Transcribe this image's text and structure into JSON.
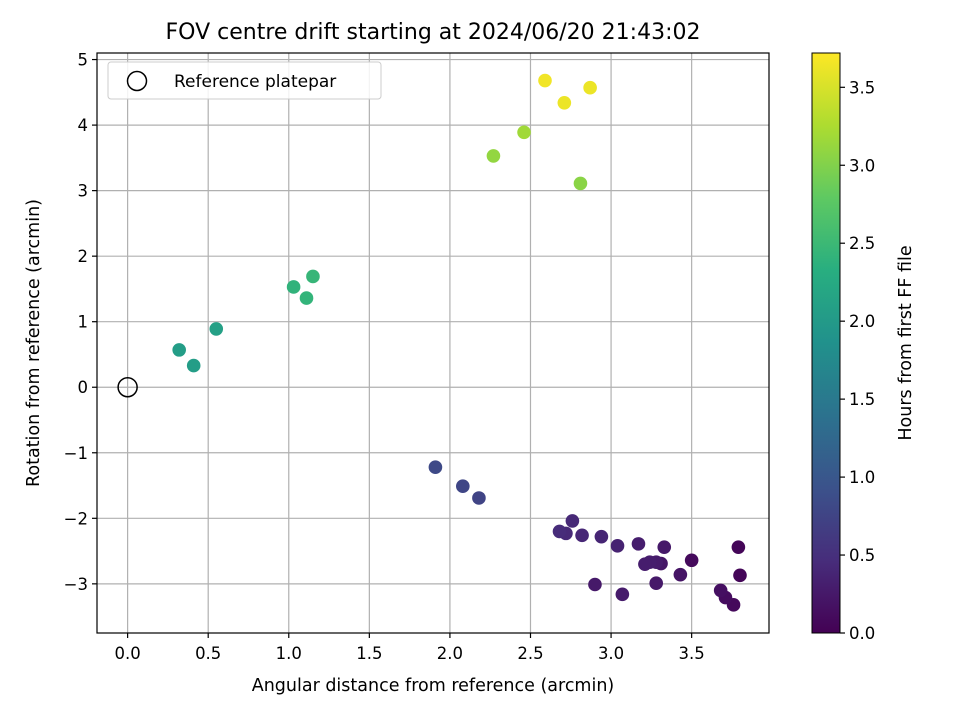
{
  "chart_data": {
    "type": "scatter",
    "title": "FOV centre drift starting at 2024/06/20 21:43:02",
    "xlabel": "Angular distance from reference (arcmin)",
    "ylabel": "Rotation from reference (arcmin)",
    "xlim": [
      -0.19,
      3.98
    ],
    "ylim": [
      -3.75,
      5.1
    ],
    "xticks": [
      "0.0",
      "0.5",
      "1.0",
      "1.5",
      "2.0",
      "2.5",
      "3.0",
      "3.5"
    ],
    "yticks": [
      "−3",
      "−2",
      "−1",
      "0",
      "1",
      "2",
      "3",
      "4",
      "5"
    ],
    "grid": true,
    "legend": {
      "placement": "top-left",
      "entries": [
        "Reference platepar"
      ]
    },
    "reference_point": {
      "x": 0.0,
      "y": 0.0
    },
    "colorbar": {
      "label": "Hours from first FF file",
      "colormap": "viridis",
      "range": [
        0.0,
        3.72
      ],
      "ticks": [
        "0.0",
        "0.5",
        "1.0",
        "1.5",
        "2.0",
        "2.5",
        "3.0",
        "3.5"
      ]
    },
    "points": [
      {
        "x": 3.79,
        "y": -2.44,
        "c": 0.05
      },
      {
        "x": 3.8,
        "y": -2.87,
        "c": 0.05
      },
      {
        "x": 3.76,
        "y": -3.32,
        "c": 0.08
      },
      {
        "x": 3.71,
        "y": -3.21,
        "c": 0.12
      },
      {
        "x": 3.68,
        "y": -3.1,
        "c": 0.15
      },
      {
        "x": 3.5,
        "y": -2.64,
        "c": 0.1
      },
      {
        "x": 3.43,
        "y": -2.86,
        "c": 0.2
      },
      {
        "x": 3.33,
        "y": -2.44,
        "c": 0.25
      },
      {
        "x": 3.31,
        "y": -2.69,
        "c": 0.22
      },
      {
        "x": 3.28,
        "y": -2.99,
        "c": 0.25
      },
      {
        "x": 3.28,
        "y": -2.67,
        "c": 0.28
      },
      {
        "x": 3.24,
        "y": -2.67,
        "c": 0.3
      },
      {
        "x": 3.21,
        "y": -2.7,
        "c": 0.3
      },
      {
        "x": 3.17,
        "y": -2.39,
        "c": 0.3
      },
      {
        "x": 3.07,
        "y": -3.16,
        "c": 0.28
      },
      {
        "x": 3.04,
        "y": -2.42,
        "c": 0.35
      },
      {
        "x": 2.94,
        "y": -2.28,
        "c": 0.38
      },
      {
        "x": 2.9,
        "y": -3.01,
        "c": 0.25
      },
      {
        "x": 2.82,
        "y": -2.26,
        "c": 0.4
      },
      {
        "x": 2.76,
        "y": -2.04,
        "c": 0.42
      },
      {
        "x": 2.72,
        "y": -2.23,
        "c": 0.42
      },
      {
        "x": 2.68,
        "y": -2.2,
        "c": 0.45
      },
      {
        "x": 2.18,
        "y": -1.69,
        "c": 0.75
      },
      {
        "x": 2.08,
        "y": -1.51,
        "c": 0.78
      },
      {
        "x": 1.91,
        "y": -1.22,
        "c": 0.82
      },
      {
        "x": 0.32,
        "y": 0.57,
        "c": 2.05
      },
      {
        "x": 0.41,
        "y": 0.33,
        "c": 2.05
      },
      {
        "x": 0.55,
        "y": 0.89,
        "c": 2.1
      },
      {
        "x": 1.03,
        "y": 1.53,
        "c": 2.4
      },
      {
        "x": 1.11,
        "y": 1.36,
        "c": 2.42
      },
      {
        "x": 1.15,
        "y": 1.69,
        "c": 2.45
      },
      {
        "x": 2.27,
        "y": 3.53,
        "c": 3.1
      },
      {
        "x": 2.46,
        "y": 3.89,
        "c": 3.18
      },
      {
        "x": 2.81,
        "y": 3.11,
        "c": 3.05
      },
      {
        "x": 2.59,
        "y": 4.68,
        "c": 3.65
      },
      {
        "x": 2.71,
        "y": 4.34,
        "c": 3.62
      },
      {
        "x": 2.87,
        "y": 4.57,
        "c": 3.62
      }
    ]
  }
}
